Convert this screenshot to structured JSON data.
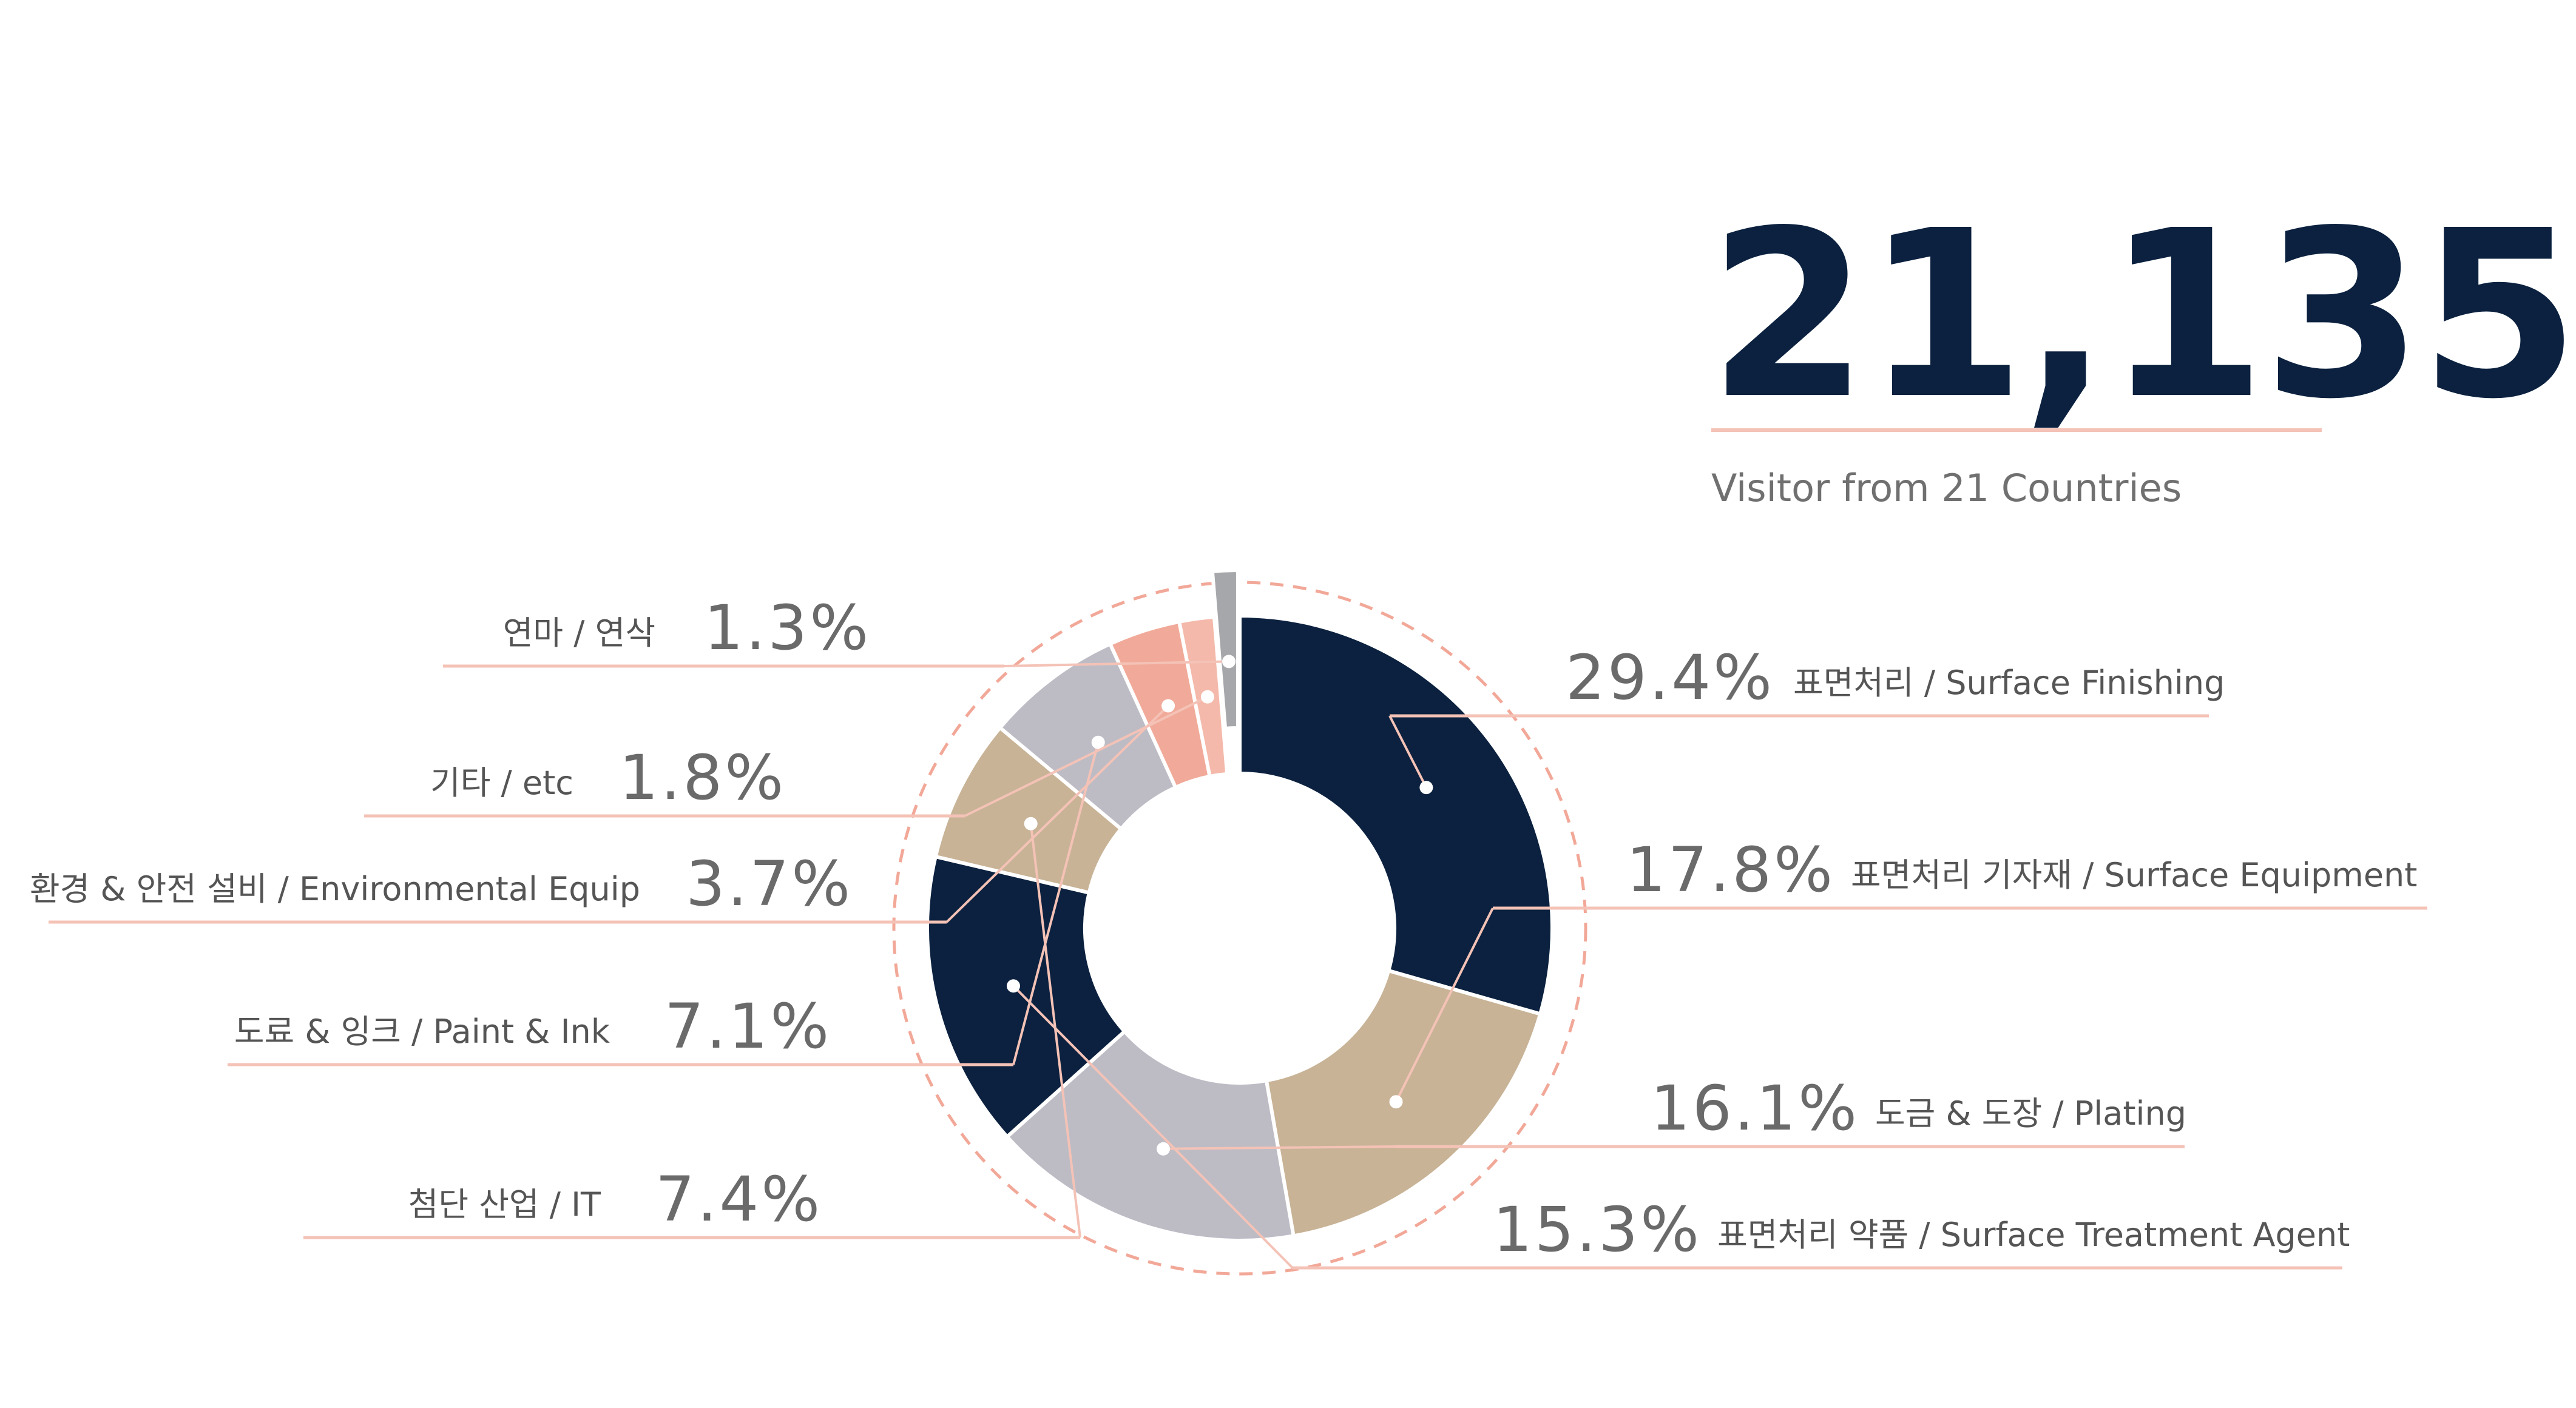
{
  "header": {
    "total": "21,135",
    "subtitle": "Visitor from 21 Countries"
  },
  "colors": {
    "navy": "#0b213f",
    "tan": "#c8b396",
    "lavender_gray": "#bdbcc5",
    "salmon": "#f1aa99",
    "light_salmon": "#f4b9aa",
    "gray": "#a6a7ab",
    "rule": "#f4c2b6",
    "text": "#555555"
  },
  "chart_data": {
    "type": "pie",
    "variant": "donut",
    "total": "21,135",
    "slices": [
      {
        "percent_label": "29.4%",
        "label": "표면처리 / Surface Finishing",
        "value": 29.4,
        "color": "#0b213f",
        "side": "right"
      },
      {
        "percent_label": "17.8%",
        "label": "표면처리 기자재 /  Surface Equipment",
        "value": 17.8,
        "color": "#c8b396",
        "side": "right"
      },
      {
        "percent_label": "16.1%",
        "label": "도금 & 도장 / Plating",
        "value": 16.1,
        "color": "#bdbcc5",
        "side": "right"
      },
      {
        "percent_label": "15.3%",
        "label": "표면처리 약품 / Surface Treatment Agent",
        "value": 15.3,
        "color": "#0b213f",
        "side": "right"
      },
      {
        "percent_label": "7.4%",
        "label": "첨단 산업 / IT",
        "value": 7.4,
        "color": "#c8b396",
        "side": "left"
      },
      {
        "percent_label": "7.1%",
        "label": "도료 & 잉크 / Paint & Ink",
        "value": 7.1,
        "color": "#bdbcc5",
        "side": "left"
      },
      {
        "percent_label": "3.7%",
        "label": "환경 & 안전 설비 / Environmental Equip",
        "value": 3.7,
        "color": "#f1aa99",
        "side": "left"
      },
      {
        "percent_label": "1.8%",
        "label": "기타 / etc",
        "value": 1.8,
        "color": "#f4b9aa",
        "side": "left"
      },
      {
        "percent_label": "1.3%",
        "label": "연마 / 연삭",
        "value": 1.3,
        "color": "#a6a7ab",
        "side": "left",
        "exploded": true
      }
    ]
  }
}
